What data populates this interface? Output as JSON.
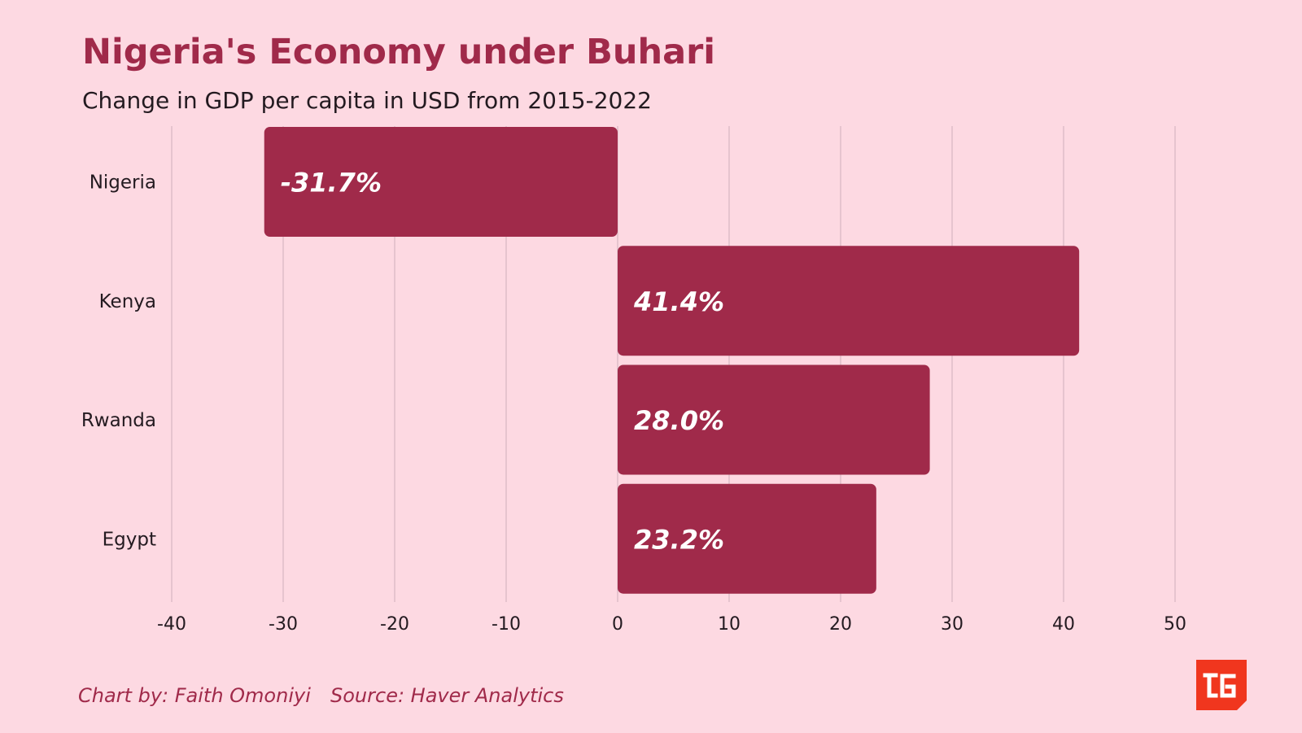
{
  "header": {
    "title": "Nigeria's Economy under Buhari",
    "subtitle": "Change in GDP per capita in USD from 2015-2022"
  },
  "chart_data": {
    "type": "bar",
    "orientation": "horizontal",
    "categories": [
      "Nigeria",
      "Kenya",
      "Rwanda",
      "Egypt"
    ],
    "values": [
      -31.7,
      41.4,
      28.0,
      23.2
    ],
    "data_labels": [
      "-31.7%",
      "41.4%",
      "28.0%",
      "23.2%"
    ],
    "xlim": [
      -40,
      50
    ],
    "xticks": [
      -40,
      -30,
      -20,
      -10,
      0,
      10,
      20,
      30,
      40,
      50
    ],
    "xlabel": "",
    "ylabel": "",
    "grid": "vertical",
    "legend": "none",
    "bar_color": "#a02a4a",
    "grid_color": "#d8b6c2"
  },
  "footer": {
    "credit": "Chart by: Faith Omoniyi",
    "source": "Source:  Haver Analytics"
  },
  "logo": {
    "icon": "tc-logo-icon",
    "color": "#f0361e"
  },
  "colors": {
    "background": "#fdd9e2",
    "accent": "#a02a4a",
    "text": "#231a20"
  }
}
